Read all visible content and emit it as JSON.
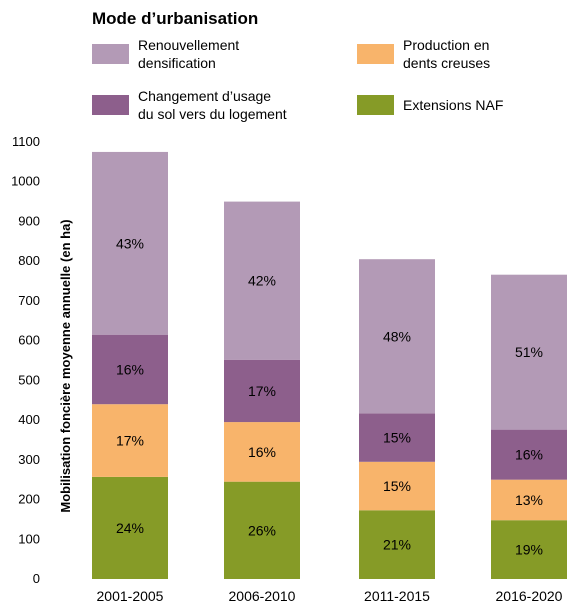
{
  "chart_data": {
    "type": "bar",
    "stacked": true,
    "title": "Mode d’urbanisation",
    "ylabel": "Mobilisation foncière moyenne annuelle (en ha)",
    "xlabel": "",
    "categories": [
      "2001-2005",
      "2006-2010",
      "2011-2015",
      "2016-2020"
    ],
    "ylim": [
      0,
      1100
    ],
    "yticks": [
      0,
      100,
      200,
      300,
      400,
      500,
      600,
      700,
      800,
      900,
      1000,
      1100
    ],
    "grid": false,
    "legend_position": "top",
    "series": [
      {
        "name": "Extensions NAF",
        "color": "#869b27",
        "values": [
          257,
          245,
          173,
          148
        ],
        "labels": [
          "24%",
          "26%",
          "21%",
          "19%"
        ]
      },
      {
        "name": "Production en dents creuses",
        "color": "#f8b46b",
        "values": [
          183,
          150,
          122,
          102
        ],
        "labels": [
          "17%",
          "16%",
          "15%",
          "13%"
        ]
      },
      {
        "name": "Changement d’usage du sol vers du logement",
        "color": "#8d5f8c",
        "values": [
          175,
          157,
          122,
          126
        ],
        "labels": [
          "16%",
          "17%",
          "15%",
          "16%"
        ]
      },
      {
        "name": "Renouvellement densification",
        "color": "#b39ab6",
        "values": [
          460,
          398,
          388,
          390
        ],
        "labels": [
          "43%",
          "42%",
          "48%",
          "51%"
        ]
      }
    ]
  },
  "legend": {
    "title": "Mode d’urbanisation",
    "items": [
      {
        "lines": [
          "Renouvellement",
          "densification"
        ],
        "color": "#b39ab6"
      },
      {
        "lines": [
          "Production en",
          "dents creuses"
        ],
        "color": "#f8b46b"
      },
      {
        "lines": [
          "Changement d’usage",
          "du sol vers du logement"
        ],
        "color": "#8d5f8c"
      },
      {
        "lines": [
          "Extensions NAF"
        ],
        "color": "#869b27"
      }
    ]
  }
}
